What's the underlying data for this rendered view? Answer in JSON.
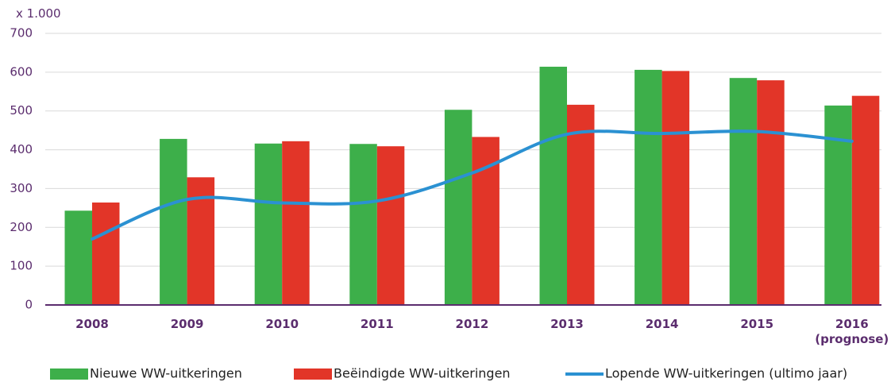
{
  "chart_data": {
    "type": "bar",
    "y_unit_label": "x 1.000",
    "categories": [
      "2008",
      "2009",
      "2010",
      "2011",
      "2012",
      "2013",
      "2014",
      "2015",
      "2016\n(prognose)"
    ],
    "series": [
      {
        "name": "Nieuwe WW-uitkeringen",
        "type": "bar",
        "color": "#3daf4a",
        "values": [
          243,
          428,
          416,
          415,
          503,
          614,
          606,
          585,
          514
        ]
      },
      {
        "name": "Beëindigde WW-uitkeringen",
        "type": "bar",
        "color": "#e23528",
        "values": [
          264,
          329,
          422,
          409,
          433,
          516,
          603,
          579,
          539
        ]
      },
      {
        "name": "Lopende WW-uitkeringen (ultimo jaar)",
        "type": "line",
        "color": "#2b91d2",
        "values": [
          170,
          272,
          263,
          268,
          340,
          440,
          442,
          447,
          422
        ]
      }
    ],
    "ylim": [
      0,
      700
    ],
    "yticks": [
      0,
      100,
      200,
      300,
      400,
      500,
      600,
      700
    ],
    "grid": true
  }
}
